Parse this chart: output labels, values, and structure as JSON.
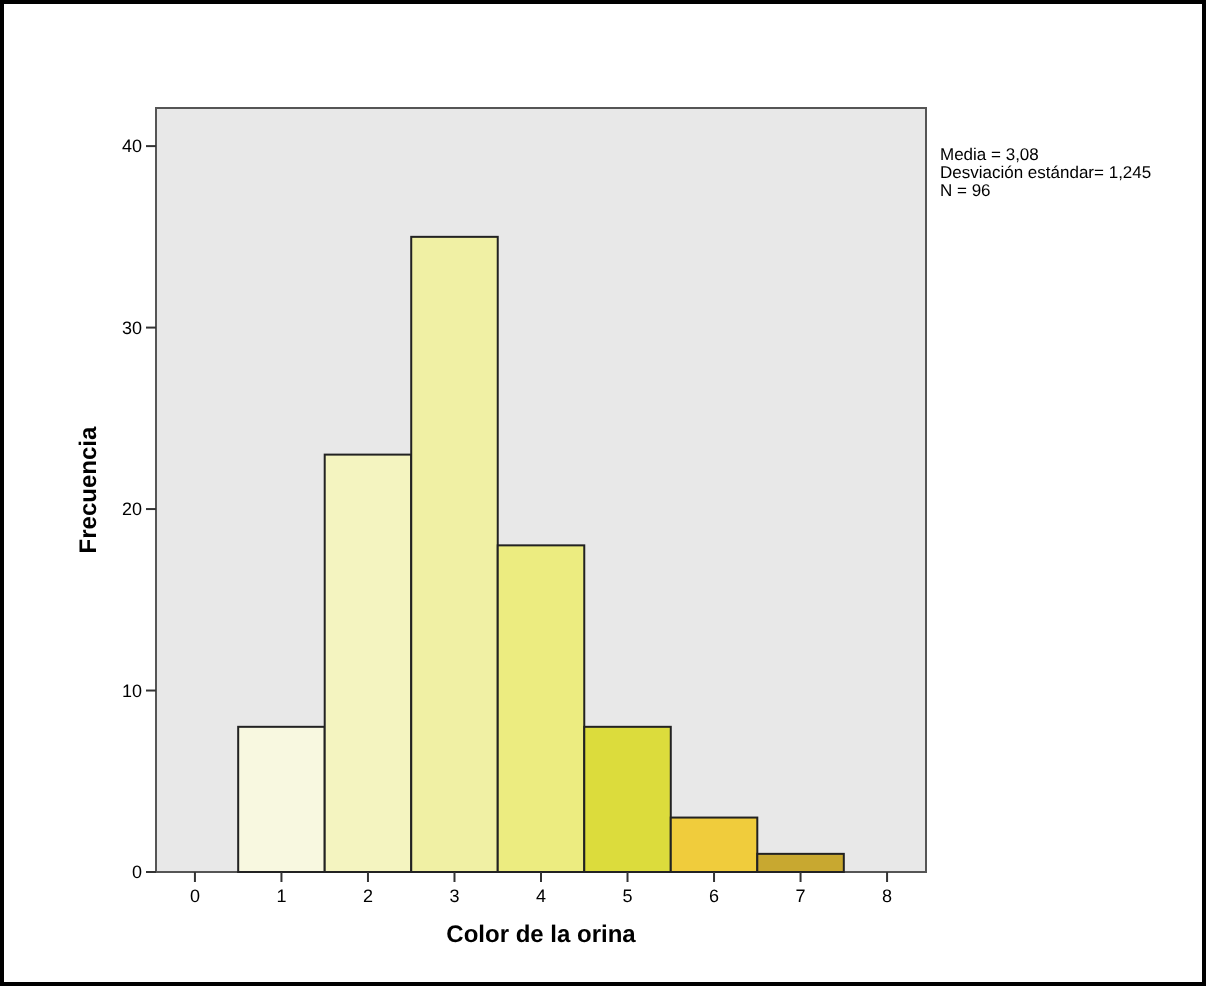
{
  "chart_data": {
    "type": "histogram",
    "xlabel": "Color de la orina",
    "ylabel": "Frecuencia",
    "bins": [
      0.5,
      1.5,
      2.5,
      3.5,
      4.5,
      5.5,
      6.5,
      7.5
    ],
    "values": [
      8,
      23,
      35,
      18,
      8,
      3,
      1
    ],
    "colors": [
      "#f8f8e0",
      "#f4f4c0",
      "#f0f0a4",
      "#ecec80",
      "#dcdc3c",
      "#f0cc3c",
      "#c8a830"
    ],
    "xlim": [
      -0.45,
      8.45
    ],
    "xticks": [
      0,
      1,
      2,
      3,
      4,
      5,
      6,
      7,
      8
    ],
    "ylim": [
      0,
      42.1
    ],
    "yticks": [
      0,
      10,
      20,
      30,
      40
    ],
    "annotations": [
      "Media = 3,08",
      "Desviación estándar= 1,245",
      "N = 96"
    ]
  }
}
